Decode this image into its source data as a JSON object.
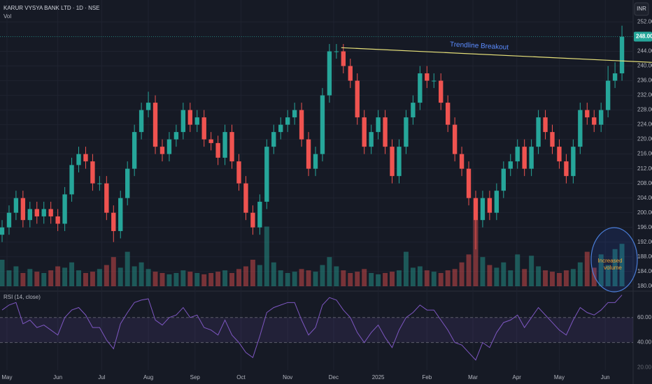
{
  "chart_data": [
    {
      "type": "candlestick",
      "title": "KARUR VYSYA BANK LTD · 1D · NSE",
      "subtitle": "Vol",
      "currency": "INR",
      "up_color": "#26a69a",
      "down_color": "#ef5350",
      "open": [
        194,
        196,
        200,
        204,
        198,
        201,
        199,
        201,
        199,
        197,
        205,
        213,
        216,
        214,
        208,
        208,
        200,
        195,
        204,
        212,
        222,
        228,
        230,
        218,
        216,
        220,
        222,
        228,
        224,
        226,
        220,
        219,
        215,
        222,
        214,
        208,
        200,
        196,
        203,
        218,
        222,
        224,
        226,
        228,
        220,
        212,
        216,
        232,
        244,
        244,
        240,
        236,
        226,
        218,
        222,
        226,
        218,
        210,
        218,
        226,
        230,
        238,
        236,
        236,
        230,
        224,
        216,
        212,
        204,
        198,
        204,
        200,
        206,
        212,
        214,
        218,
        212,
        218,
        226,
        222,
        218,
        214,
        210,
        218,
        228,
        226,
        224,
        228,
        236,
        238
      ],
      "high": [
        198,
        202,
        206,
        206,
        203,
        203,
        203,
        203,
        201,
        207,
        215,
        218,
        218,
        216,
        210,
        210,
        202,
        206,
        214,
        224,
        230,
        233,
        232,
        220,
        222,
        224,
        230,
        230,
        228,
        228,
        222,
        221,
        224,
        224,
        216,
        210,
        202,
        205,
        220,
        224,
        226,
        228,
        230,
        230,
        222,
        218,
        234,
        246,
        246,
        246,
        242,
        238,
        228,
        224,
        228,
        228,
        220,
        220,
        228,
        232,
        240,
        240,
        238,
        238,
        232,
        226,
        218,
        214,
        206,
        206,
        206,
        208,
        214,
        216,
        220,
        220,
        220,
        228,
        228,
        224,
        220,
        216,
        220,
        230,
        230,
        228,
        230,
        240,
        241,
        251
      ],
      "low": [
        192,
        194,
        198,
        196,
        196,
        197,
        197,
        197,
        195,
        195,
        203,
        211,
        212,
        206,
        206,
        198,
        192,
        193,
        202,
        210,
        220,
        226,
        216,
        214,
        214,
        218,
        220,
        222,
        222,
        218,
        217,
        213,
        213,
        212,
        206,
        198,
        194,
        194,
        201,
        216,
        220,
        222,
        224,
        218,
        210,
        210,
        214,
        230,
        242,
        238,
        234,
        224,
        216,
        216,
        220,
        216,
        208,
        208,
        216,
        224,
        228,
        234,
        234,
        228,
        222,
        214,
        210,
        202,
        190,
        196,
        198,
        198,
        204,
        210,
        212,
        210,
        210,
        216,
        220,
        216,
        212,
        208,
        208,
        216,
        224,
        222,
        222,
        226,
        234,
        236
      ],
      "close": [
        196,
        200,
        204,
        198,
        201,
        199,
        201,
        199,
        197,
        205,
        213,
        216,
        214,
        208,
        208,
        200,
        195,
        204,
        212,
        222,
        228,
        230,
        218,
        216,
        220,
        222,
        228,
        224,
        226,
        220,
        219,
        215,
        222,
        214,
        208,
        200,
        196,
        203,
        218,
        222,
        224,
        226,
        228,
        220,
        212,
        216,
        232,
        244,
        244,
        240,
        236,
        226,
        218,
        222,
        226,
        218,
        210,
        218,
        226,
        230,
        238,
        236,
        236,
        230,
        224,
        216,
        212,
        204,
        198,
        204,
        200,
        206,
        212,
        214,
        218,
        212,
        218,
        226,
        222,
        218,
        214,
        210,
        218,
        228,
        226,
        224,
        228,
        236,
        238,
        248
      ],
      "volume": [
        2.0,
        1.2,
        1.5,
        1.0,
        1.3,
        1.1,
        1.0,
        1.2,
        1.5,
        1.4,
        1.8,
        1.2,
        1.0,
        1.1,
        1.3,
        1.6,
        2.2,
        1.4,
        2.6,
        1.5,
        1.8,
        1.3,
        1.1,
        1.0,
        0.9,
        1.0,
        1.2,
        1.1,
        1.0,
        0.9,
        1.0,
        1.1,
        1.2,
        1.0,
        1.3,
        1.5,
        2.0,
        1.6,
        4.5,
        1.8,
        1.2,
        1.0,
        1.1,
        1.3,
        1.2,
        1.1,
        1.6,
        2.2,
        1.5,
        1.2,
        1.0,
        1.1,
        1.3,
        1.0,
        0.9,
        1.0,
        1.1,
        1.2,
        2.6,
        1.4,
        1.5,
        1.2,
        1.1,
        1.0,
        1.2,
        1.3,
        1.8,
        2.4,
        5.0,
        2.2,
        1.6,
        1.4,
        1.8,
        1.2,
        2.4,
        1.3,
        2.3,
        1.5,
        1.2,
        1.1,
        1.0,
        1.2,
        1.3,
        1.8,
        2.6,
        1.4,
        2.4,
        1.6,
        2.8,
        3.2
      ],
      "xlim": [
        -0.3,
        90.6
      ],
      "ylim": [
        179,
        258
      ],
      "yticks": [
        {
          "value": 180,
          "label": "180.00"
        },
        {
          "value": 184,
          "label": "184.00"
        },
        {
          "value": 188,
          "label": "188.00"
        },
        {
          "value": 192,
          "label": "192.00"
        },
        {
          "value": 196,
          "label": "196.00"
        },
        {
          "value": 200,
          "label": "200.00"
        },
        {
          "value": 204,
          "label": "204.00"
        },
        {
          "value": 208,
          "label": "208.00"
        },
        {
          "value": 212,
          "label": "212.00"
        },
        {
          "value": 216,
          "label": "216.00"
        },
        {
          "value": 220,
          "label": "220.00"
        },
        {
          "value": 224,
          "label": "224.00"
        },
        {
          "value": 228,
          "label": "228.00"
        },
        {
          "value": 232,
          "label": "232.00"
        },
        {
          "value": 236,
          "label": "236.00"
        },
        {
          "value": 240,
          "label": "240.00"
        },
        {
          "value": 244,
          "label": "244.00"
        },
        {
          "value": 252,
          "label": "252.00"
        }
      ],
      "last_price": {
        "value": 248,
        "label": "248.00"
      },
      "trendline": {
        "x": [
          48.7,
          93.3
        ],
        "y": [
          245,
          241
        ],
        "color": "#e8e27a",
        "label": "Trendline Breakout"
      },
      "volume_note": [
        "Increased",
        "volume"
      ]
    },
    {
      "type": "line",
      "title": "RSI (14, close)",
      "color": "#7e57c2",
      "values": [
        66,
        70,
        72,
        55,
        58,
        52,
        54,
        50,
        46,
        60,
        66,
        68,
        62,
        52,
        52,
        42,
        35,
        55,
        64,
        72,
        74,
        75,
        58,
        54,
        60,
        62,
        68,
        60,
        62,
        52,
        50,
        46,
        58,
        46,
        40,
        32,
        28,
        45,
        64,
        68,
        70,
        72,
        72,
        58,
        46,
        52,
        70,
        76,
        74,
        66,
        60,
        48,
        40,
        48,
        54,
        44,
        36,
        50,
        60,
        64,
        70,
        66,
        66,
        58,
        50,
        40,
        38,
        32,
        26,
        40,
        36,
        48,
        56,
        58,
        62,
        52,
        60,
        68,
        62,
        56,
        50,
        46,
        58,
        68,
        64,
        62,
        66,
        72,
        72,
        78
      ],
      "xlim": [
        -0.3,
        90.6
      ],
      "ylim": [
        18,
        80
      ],
      "yticks": [
        {
          "value": 60,
          "label": "60.00"
        },
        {
          "value": 40,
          "label": "40.00"
        },
        {
          "value": 20,
          "label": "20.00"
        }
      ],
      "xticks": [
        {
          "value": 0.7,
          "label": "May"
        },
        {
          "value": 8.0,
          "label": "Jun"
        },
        {
          "value": 14.3,
          "label": "Jul"
        },
        {
          "value": 21.0,
          "label": "Aug"
        },
        {
          "value": 27.7,
          "label": "Sep"
        },
        {
          "value": 34.3,
          "label": "Oct"
        },
        {
          "value": 41.0,
          "label": "Nov"
        },
        {
          "value": 47.6,
          "label": "Dec"
        },
        {
          "value": 54.0,
          "label": "2025"
        },
        {
          "value": 61.0,
          "label": "Feb"
        },
        {
          "value": 67.6,
          "label": "Mar"
        },
        {
          "value": 73.9,
          "label": "Apr"
        },
        {
          "value": 80.0,
          "label": "May"
        },
        {
          "value": 86.6,
          "label": "Jun"
        }
      ]
    }
  ]
}
